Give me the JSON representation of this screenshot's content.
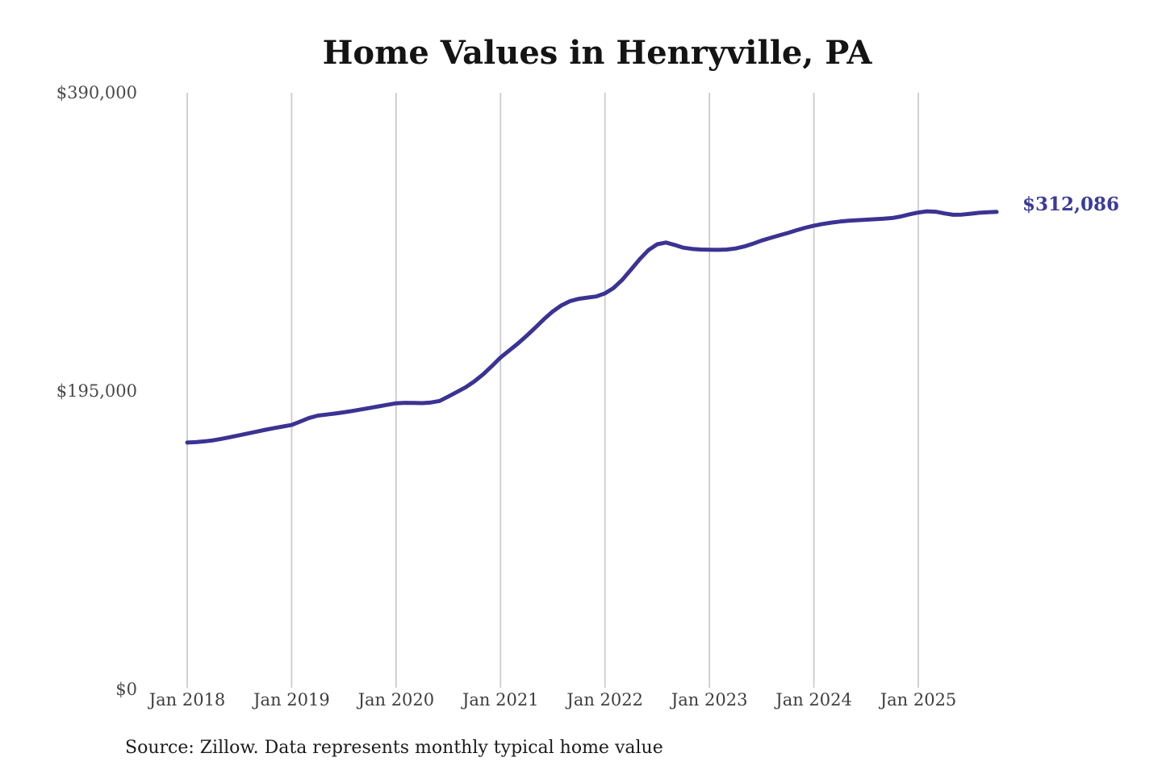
{
  "page": {
    "background": "#ffffff"
  },
  "chart": {
    "title": "Home Values in Henryville, PA",
    "end_value_label": "$312,086",
    "source_note": "Source: Zillow. Data represents monthly typical home value"
  },
  "chart_data": {
    "type": "line",
    "title": "Home Values in Henryville, PA",
    "series": [
      {
        "name": "Monthly typical home value (USD)",
        "start_month": "Jan 2018",
        "end_month": "Oct 2025",
        "frequency": "monthly",
        "values": [
          161300,
          161600,
          162100,
          162800,
          163800,
          164900,
          166100,
          167300,
          168500,
          169700,
          170800,
          171800,
          172800,
          175100,
          177400,
          178900,
          179600,
          180300,
          181100,
          182000,
          183000,
          184000,
          185000,
          186000,
          187000,
          187300,
          187200,
          187100,
          187500,
          188500,
          191400,
          194400,
          197500,
          201300,
          205900,
          211300,
          216900,
          221500,
          226100,
          231100,
          236500,
          242000,
          247000,
          251000,
          253800,
          255300,
          256100,
          256800,
          258800,
          262400,
          267800,
          274400,
          281300,
          287100,
          290900,
          292100,
          290500,
          288700,
          287900,
          287500,
          287400,
          287300,
          287500,
          288200,
          289500,
          291300,
          293400,
          295100,
          296700,
          298300,
          300100,
          301700,
          303100,
          304200,
          305100,
          305800,
          306300,
          306700,
          307000,
          307300,
          307600,
          308100,
          309100,
          310500,
          311700,
          312500,
          312200,
          311100,
          310200,
          310300,
          310900,
          311500,
          311900,
          312086
        ]
      }
    ],
    "x_tick_labels": [
      "Jan 2018",
      "Jan 2019",
      "Jan 2020",
      "Jan 2021",
      "Jan 2022",
      "Jan 2023",
      "Jan 2024",
      "Jan 2025"
    ],
    "y_ticks": [
      {
        "label": "$0",
        "value": 0
      },
      {
        "label": "$195,000",
        "value": 195000
      },
      {
        "label": "$390,000",
        "value": 390000
      }
    ],
    "ylim": [
      0,
      390000
    ],
    "grid": "vertical-only",
    "legend": "none",
    "end_label": "$312,086",
    "end_value": 312086,
    "colors": {
      "line": "#3b3393",
      "end_label": "#3a3a99",
      "grid": "#cccccc",
      "x_axis_text": "#3e3e3e",
      "y_axis_text": "#4a4a4a",
      "title_text": "#141414",
      "source_text": "#1c1c1c",
      "background": "#ffffff"
    }
  }
}
